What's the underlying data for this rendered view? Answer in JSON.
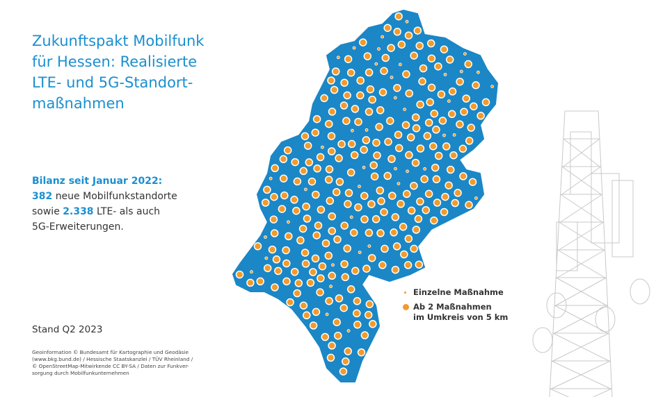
{
  "title_lines": [
    "Zukunftspakt Mobilfunk",
    "für Hessen: Realisierte",
    "LTE- und 5G-Standort-",
    "maßnahmen"
  ],
  "summary": {
    "heading": "Bilanz seit Januar 2022:",
    "sites_count": "382",
    "sites_text": "neue Mobilfunkstandorte",
    "joiner": "sowie",
    "upgrades_count": "2.338",
    "upgrades_text": "LTE- als auch",
    "upgrades_text_2": "5G-Erweiterungen."
  },
  "legend": {
    "single": "Einzelne Maßnahme",
    "multi_line_1": "Ab 2 Maßnahmen",
    "multi_line_2": "im Umkreis von 5 km"
  },
  "status": "Stand Q2 2023",
  "source_lines": [
    "Geoinformation © Bundesamt für Kartographie und Geodäsie",
    "(www.bkg.bund.de) / Hessische Staatskanzlei / TÜV Rheinland /",
    "© OpenStreetMap-Mitwirkende CC BY-SA / Daten zur Funkver-",
    "sorgung durch Mobilfunkunternehmen"
  ]
}
